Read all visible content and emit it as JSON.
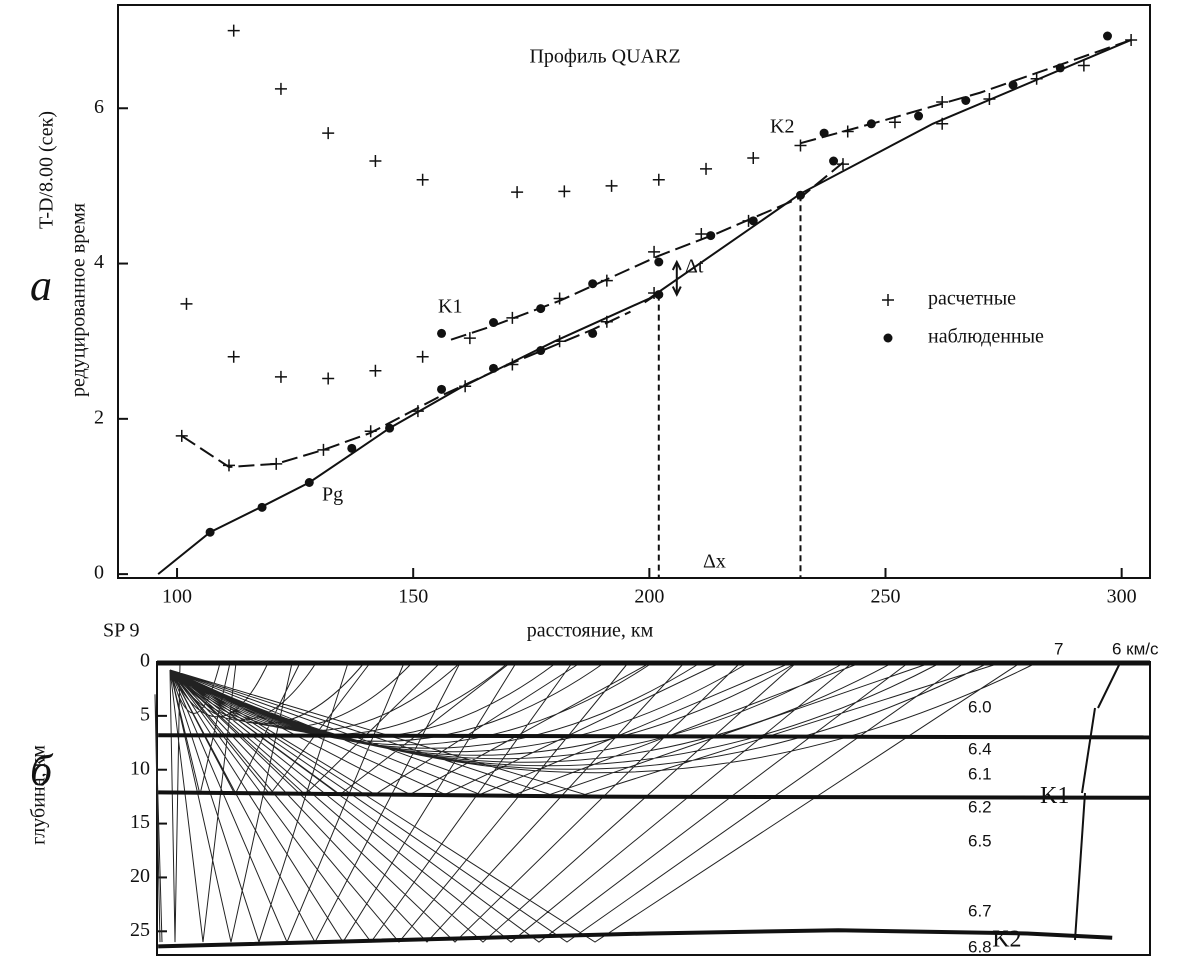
{
  "chart_data": [
    {
      "type": "traveltime",
      "title": "Профиль QUARZ",
      "panel_label": "а",
      "x_label": "расстояние, км",
      "y_label": "T-D/8.00 (сек)",
      "y_label2": "редуцированное время",
      "source_label": "SP 9",
      "xlim": [
        87.5,
        306
      ],
      "ylim": [
        -0.05,
        7.33
      ],
      "xticks": [
        100,
        150,
        200,
        250,
        300
      ],
      "yticks": [
        0,
        2,
        4,
        6
      ],
      "legend": "right",
      "series": [
        {
          "name": "расчетные",
          "marker": "plus",
          "x": [
            112,
            122,
            132,
            142,
            152,
            172,
            182,
            192,
            202,
            212,
            222,
            232,
            242,
            252,
            262,
            272,
            282,
            292,
            302,
            102,
            112,
            122,
            132,
            142,
            152,
            162,
            101,
            111,
            121,
            131,
            141,
            151,
            161,
            171,
            181,
            191,
            201,
            171,
            181,
            191,
            201,
            211,
            221,
            241,
            262
          ],
          "values": [
            7.0,
            6.25,
            5.68,
            5.32,
            5.08,
            4.92,
            4.93,
            5.0,
            5.08,
            5.22,
            5.36,
            5.52,
            5.7,
            5.82,
            6.08,
            6.12,
            6.38,
            6.55,
            6.88,
            3.48,
            2.8,
            2.54,
            2.52,
            2.62,
            2.8,
            3.04,
            1.78,
            1.4,
            1.42,
            1.6,
            1.84,
            2.1,
            2.42,
            2.7,
            3.0,
            3.25,
            3.62,
            3.3,
            3.55,
            3.78,
            4.15,
            4.38,
            4.55,
            5.28,
            5.8
          ]
        },
        {
          "name": "наблюденные",
          "marker": "star",
          "x": [
            107,
            118,
            128,
            137,
            145,
            156,
            167,
            177,
            188,
            202,
            156,
            167,
            177,
            188,
            202,
            213,
            222,
            232,
            239,
            237,
            247,
            257,
            267,
            277,
            287,
            297
          ],
          "values": [
            0.54,
            0.86,
            1.18,
            1.62,
            1.88,
            2.38,
            2.65,
            2.88,
            3.1,
            3.6,
            3.1,
            3.24,
            3.42,
            3.74,
            4.02,
            4.36,
            4.55,
            4.88,
            5.32,
            5.68,
            5.8,
            5.9,
            6.1,
            6.3,
            6.52,
            6.93
          ]
        }
      ],
      "curves": [
        {
          "dash": false,
          "x": [
            96,
            107,
            118,
            128,
            137,
            145,
            160,
            180,
            200,
            232,
            260,
            302
          ],
          "values": [
            0,
            0.54,
            0.87,
            1.18,
            1.55,
            1.88,
            2.4,
            3.0,
            3.55,
            4.9,
            5.8,
            6.88
          ]
        },
        {
          "dash": true,
          "x": [
            101,
            111,
            121,
            131,
            141,
            156,
            171,
            188,
            196,
            null,
            199,
            202
          ],
          "values": [
            1.78,
            1.38,
            1.42,
            1.6,
            1.82,
            2.3,
            2.72,
            3.15,
            3.38,
            null,
            3.5,
            3.62
          ]
        },
        {
          "dash": true,
          "x": [
            158,
            167,
            181,
            202,
            214,
            232,
            241
          ],
          "values": [
            3.02,
            3.2,
            3.52,
            4.1,
            4.38,
            4.85,
            5.3
          ]
        },
        {
          "dash": true,
          "x": [
            232,
            250,
            270,
            302
          ],
          "values": [
            5.55,
            5.85,
            6.2,
            6.88
          ]
        }
      ],
      "annotations": [
        "K1",
        "K2",
        "Pg",
        "Δt",
        "Δx"
      ]
    },
    {
      "type": "profile",
      "panel_label": "б",
      "y_label": "глубина, км",
      "ylim": [
        0,
        27.2
      ],
      "yticks": [
        0,
        5,
        10,
        15,
        20,
        25
      ],
      "interfaces": [
        {
          "x": [
            96,
            306
          ],
          "values": [
            6.8,
            7.0
          ]
        },
        {
          "name": "K1",
          "x": [
            96,
            190,
            306
          ],
          "values": [
            12.1,
            12.5,
            12.6
          ]
        },
        {
          "name": "K2",
          "x": [
            96,
            200,
            240,
            280,
            298
          ],
          "values": [
            26.4,
            25.2,
            24.9,
            25.2,
            25.6
          ]
        }
      ],
      "velocity_labels": [
        "6.0",
        "6.4",
        "6.1",
        "6.2",
        "6.5",
        "6.7",
        "6.8",
        "7",
        "6 км/с"
      ]
    }
  ]
}
